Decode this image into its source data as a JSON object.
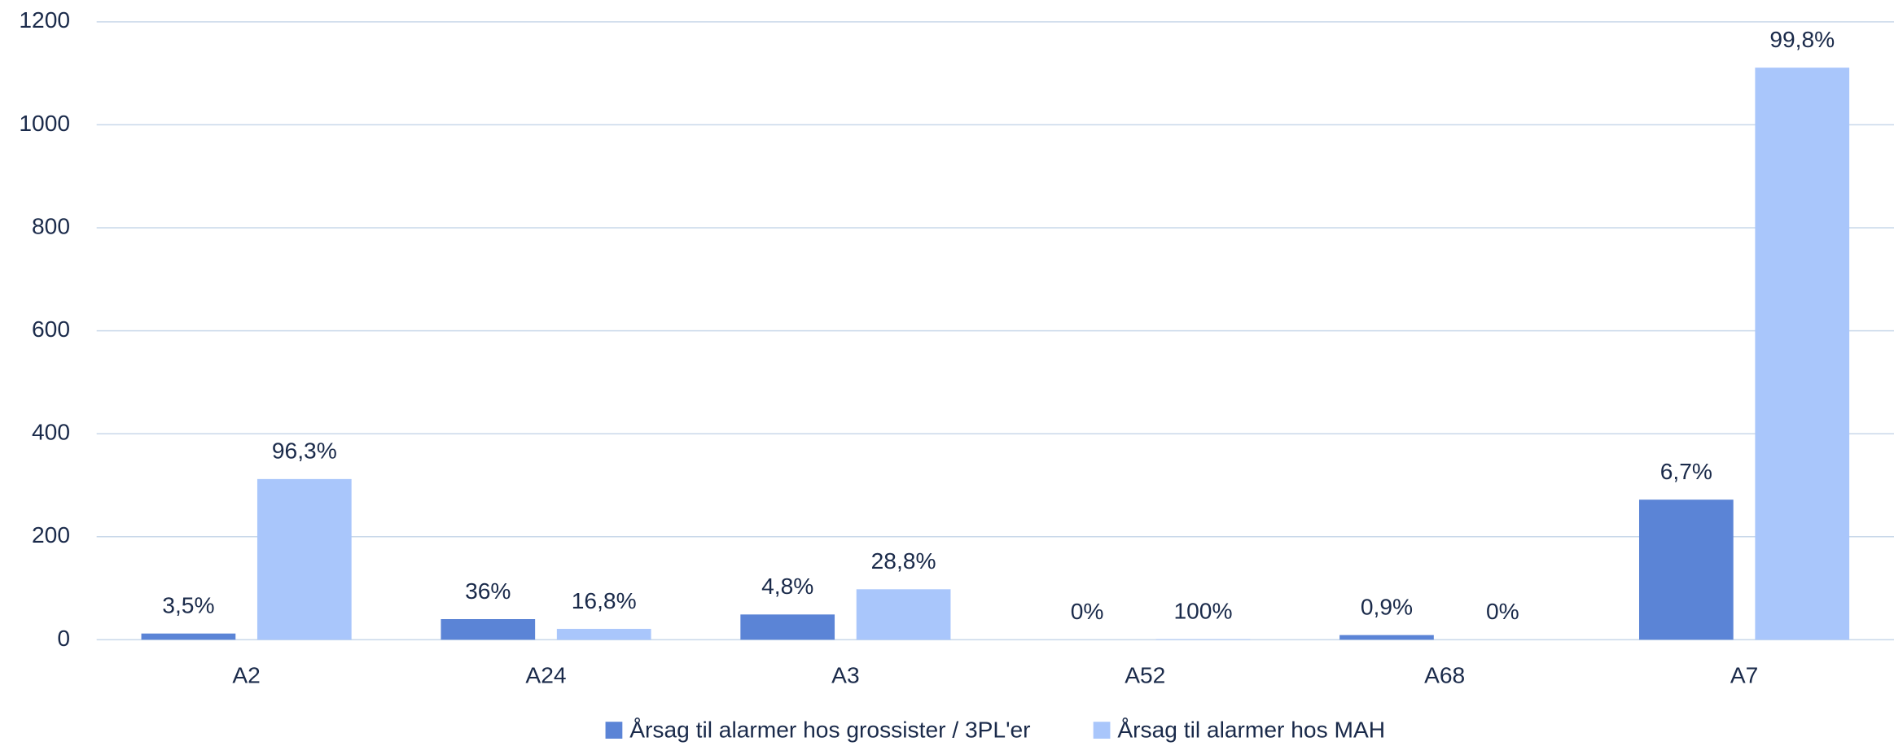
{
  "chart_data": {
    "type": "bar",
    "categories": [
      "A2",
      "A24",
      "A3",
      "A52",
      "A68",
      "A7"
    ],
    "series": [
      {
        "name": "Årsag til alarmer hos grossister / 3PL'er",
        "color": "#5b84d6",
        "values": [
          12,
          40,
          49,
          0,
          9,
          272
        ],
        "annotations": [
          "3,5%",
          "36%",
          "4,8%",
          "0%",
          "0,9%",
          "6,7%"
        ]
      },
      {
        "name": "Årsag til alarmer hos MAH",
        "color": "#a9c6fb",
        "values": [
          312,
          21,
          98,
          1,
          0,
          1111
        ],
        "annotations": [
          "96,3%",
          "16,8%",
          "28,8%",
          "100%",
          "0%",
          "99,8%"
        ]
      }
    ],
    "ylim": [
      0,
      1200
    ],
    "yticks": [
      0,
      200,
      400,
      600,
      800,
      1000,
      1200
    ],
    "grid": true
  }
}
